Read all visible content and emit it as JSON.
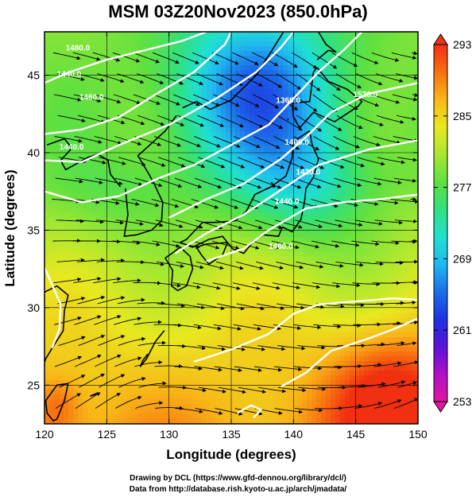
{
  "title": "MSM 03Z20Nov2023 (850.0hPa)",
  "x_axis": {
    "title": "Longitude (degrees)",
    "range": [
      120,
      150
    ],
    "ticks": [
      120,
      125,
      130,
      135,
      140,
      145,
      150
    ],
    "tick_labels": [
      "120",
      "125",
      "130",
      "135",
      "140",
      "145",
      "150"
    ]
  },
  "y_axis": {
    "title": "Latitude  (degrees)",
    "range": [
      22.5,
      47.8
    ],
    "ticks": [
      25,
      30,
      35,
      40,
      45
    ],
    "tick_labels": [
      "25",
      "30",
      "35",
      "40",
      "45"
    ]
  },
  "colorbar": {
    "min": 253,
    "max": 293,
    "labels": [
      "293",
      "285",
      "277",
      "269",
      "261",
      "253"
    ],
    "label_values": [
      293,
      285,
      277,
      269,
      261,
      253
    ],
    "colors": [
      "#e0189c",
      "#b010c8",
      "#5a14d8",
      "#1e32e0",
      "#1c6ee8",
      "#20b8f0",
      "#20e0d0",
      "#30e080",
      "#60e040",
      "#a8e830",
      "#e8e820",
      "#f8b818",
      "#f87010",
      "#f03010"
    ]
  },
  "contour_labels": [
    "1480.0",
    "1440.0",
    "1460.0",
    "1440.0",
    "1400.0",
    "1360.0",
    "1420.0",
    "1440.0",
    "1460.0",
    "1520.0"
  ],
  "footer": {
    "line1": "Drawing by DCL (https://www.gfd-dennou.org/library/dcl/)",
    "line2": "Data from http://database.rish.kyoto-u.ac.jp/arch/jmadata/"
  },
  "colors": {
    "contour": "#ffffff",
    "frame": "#000000",
    "coast": "#000000",
    "streamline": "#000000"
  }
}
